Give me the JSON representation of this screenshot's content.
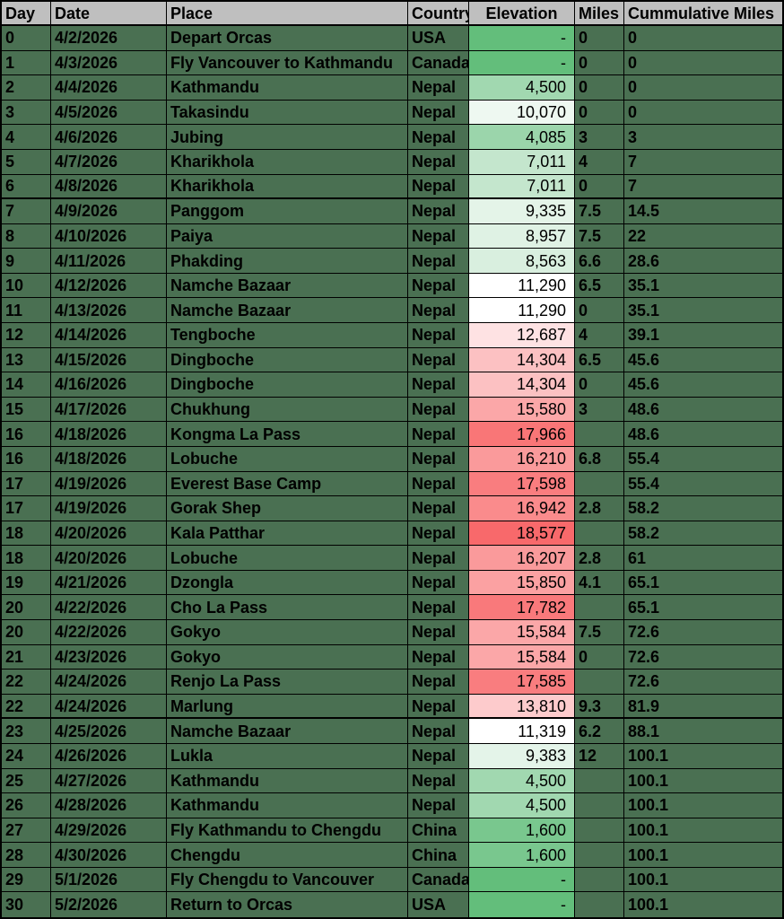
{
  "colors": {
    "border": "#000000",
    "header_bg": "#BFBFBF",
    "row_bg": "#4A7052",
    "elevation_scale": {
      "min": 0,
      "mid": 11304,
      "max": 18577,
      "min_color": "#63BE7B",
      "mid_color": "#FFFFFF",
      "max_color": "#F8696B"
    }
  },
  "table": {
    "columns": [
      {
        "key": "day",
        "label": "Day"
      },
      {
        "key": "date",
        "label": "Date"
      },
      {
        "key": "place",
        "label": "Place"
      },
      {
        "key": "country",
        "label": "Country"
      },
      {
        "key": "elevation",
        "label": "Elevation"
      },
      {
        "key": "miles",
        "label": "Miles"
      },
      {
        "key": "cumulative",
        "label": "Cummulative Miles"
      }
    ],
    "elevation_empty_display": "-",
    "rows": [
      {
        "day": 0,
        "date": "4/2/2026",
        "place": "Depart Orcas",
        "country": "USA",
        "elevation": null,
        "miles": "0",
        "cumulative": "0"
      },
      {
        "day": 1,
        "date": "4/3/2026",
        "place": "Fly Vancouver to Kathmandu",
        "country": "Canada",
        "elevation": null,
        "miles": "0",
        "cumulative": "0"
      },
      {
        "day": 2,
        "date": "4/4/2026",
        "place": "Kathmandu",
        "country": "Nepal",
        "elevation": 4500,
        "miles": "0",
        "cumulative": "0"
      },
      {
        "day": 3,
        "date": "4/5/2026",
        "place": "Takasindu",
        "country": "Nepal",
        "elevation": 10070,
        "miles": "0",
        "cumulative": "0"
      },
      {
        "day": 4,
        "date": "4/6/2026",
        "place": "Jubing",
        "country": "Nepal",
        "elevation": 4085,
        "miles": "3",
        "cumulative": "3"
      },
      {
        "day": 5,
        "date": "4/7/2026",
        "place": "Kharikhola",
        "country": "Nepal",
        "elevation": 7011,
        "miles": "4",
        "cumulative": "7"
      },
      {
        "day": 6,
        "date": "4/8/2026",
        "place": "Kharikhola",
        "country": "Nepal",
        "elevation": 7011,
        "miles": "0",
        "cumulative": "7",
        "thick_border_below": true
      },
      {
        "day": 7,
        "date": "4/9/2026",
        "place": "Panggom",
        "country": "Nepal",
        "elevation": 9335,
        "miles": "7.5",
        "cumulative": "14.5"
      },
      {
        "day": 8,
        "date": "4/10/2026",
        "place": "Paiya",
        "country": "Nepal",
        "elevation": 8957,
        "miles": "7.5",
        "cumulative": "22"
      },
      {
        "day": 9,
        "date": "4/11/2026",
        "place": "Phakding",
        "country": "Nepal",
        "elevation": 8563,
        "miles": "6.6",
        "cumulative": "28.6"
      },
      {
        "day": 10,
        "date": "4/12/2026",
        "place": "Namche Bazaar",
        "country": "Nepal",
        "elevation": 11290,
        "miles": "6.5",
        "cumulative": "35.1"
      },
      {
        "day": 11,
        "date": "4/13/2026",
        "place": "Namche Bazaar",
        "country": "Nepal",
        "elevation": 11290,
        "miles": "0",
        "cumulative": "35.1"
      },
      {
        "day": 12,
        "date": "4/14/2026",
        "place": "Tengboche",
        "country": "Nepal",
        "elevation": 12687,
        "miles": "4",
        "cumulative": "39.1"
      },
      {
        "day": 13,
        "date": "4/15/2026",
        "place": "Dingboche",
        "country": "Nepal",
        "elevation": 14304,
        "miles": "6.5",
        "cumulative": "45.6"
      },
      {
        "day": 14,
        "date": "4/16/2026",
        "place": "Dingboche",
        "country": "Nepal",
        "elevation": 14304,
        "miles": "0",
        "cumulative": "45.6"
      },
      {
        "day": 15,
        "date": "4/17/2026",
        "place": "Chukhung",
        "country": "Nepal",
        "elevation": 15580,
        "miles": "3",
        "cumulative": "48.6"
      },
      {
        "day": 16,
        "date": "4/18/2026",
        "place": "Kongma La Pass",
        "country": "Nepal",
        "elevation": 17966,
        "miles": "",
        "cumulative": "48.6"
      },
      {
        "day": 16,
        "date": "4/18/2026",
        "place": "Lobuche",
        "country": "Nepal",
        "elevation": 16210,
        "miles": "6.8",
        "cumulative": "55.4"
      },
      {
        "day": 17,
        "date": "4/19/2026",
        "place": "Everest Base Camp",
        "country": "Nepal",
        "elevation": 17598,
        "miles": "",
        "cumulative": "55.4"
      },
      {
        "day": 17,
        "date": "4/19/2026",
        "place": "Gorak Shep",
        "country": "Nepal",
        "elevation": 16942,
        "miles": "2.8",
        "cumulative": "58.2"
      },
      {
        "day": 18,
        "date": "4/20/2026",
        "place": "Kala Patthar",
        "country": "Nepal",
        "elevation": 18577,
        "miles": "",
        "cumulative": "58.2"
      },
      {
        "day": 18,
        "date": "4/20/2026",
        "place": "Lobuche",
        "country": "Nepal",
        "elevation": 16207,
        "miles": "2.8",
        "cumulative": "61"
      },
      {
        "day": 19,
        "date": "4/21/2026",
        "place": "Dzongla",
        "country": "Nepal",
        "elevation": 15850,
        "miles": "4.1",
        "cumulative": "65.1"
      },
      {
        "day": 20,
        "date": "4/22/2026",
        "place": "Cho La Pass",
        "country": "Nepal",
        "elevation": 17782,
        "miles": "",
        "cumulative": "65.1"
      },
      {
        "day": 20,
        "date": "4/22/2026",
        "place": "Gokyo",
        "country": "Nepal",
        "elevation": 15584,
        "miles": "7.5",
        "cumulative": "72.6"
      },
      {
        "day": 21,
        "date": "4/23/2026",
        "place": "Gokyo",
        "country": "Nepal",
        "elevation": 15584,
        "miles": "0",
        "cumulative": "72.6"
      },
      {
        "day": 22,
        "date": "4/24/2026",
        "place": "Renjo La Pass",
        "country": "Nepal",
        "elevation": 17585,
        "miles": "",
        "cumulative": "72.6"
      },
      {
        "day": 22,
        "date": "4/24/2026",
        "place": "Marlung",
        "country": "Nepal",
        "elevation": 13810,
        "miles": "9.3",
        "cumulative": "81.9",
        "thick_border_below": true
      },
      {
        "day": 23,
        "date": "4/25/2026",
        "place": "Namche Bazaar",
        "country": "Nepal",
        "elevation": 11319,
        "miles": "6.2",
        "cumulative": "88.1"
      },
      {
        "day": 24,
        "date": "4/26/2026",
        "place": "Lukla",
        "country": "Nepal",
        "elevation": 9383,
        "miles": "12",
        "cumulative": "100.1"
      },
      {
        "day": 25,
        "date": "4/27/2026",
        "place": "Kathmandu",
        "country": "Nepal",
        "elevation": 4500,
        "miles": "",
        "cumulative": "100.1"
      },
      {
        "day": 26,
        "date": "4/28/2026",
        "place": "Kathmandu",
        "country": "Nepal",
        "elevation": 4500,
        "miles": "",
        "cumulative": "100.1"
      },
      {
        "day": 27,
        "date": "4/29/2026",
        "place": "Fly Kathmandu to Chengdu",
        "country": "China",
        "elevation": 1600,
        "miles": "",
        "cumulative": "100.1"
      },
      {
        "day": 28,
        "date": "4/30/2026",
        "place": "Chengdu",
        "country": "China",
        "elevation": 1600,
        "miles": "",
        "cumulative": "100.1"
      },
      {
        "day": 29,
        "date": "5/1/2026",
        "place": "Fly Chengdu to Vancouver",
        "country": "Canada",
        "elevation": null,
        "miles": "",
        "cumulative": "100.1"
      },
      {
        "day": 30,
        "date": "5/2/2026",
        "place": "Return to Orcas",
        "country": "USA",
        "elevation": null,
        "miles": "",
        "cumulative": "100.1"
      }
    ]
  }
}
